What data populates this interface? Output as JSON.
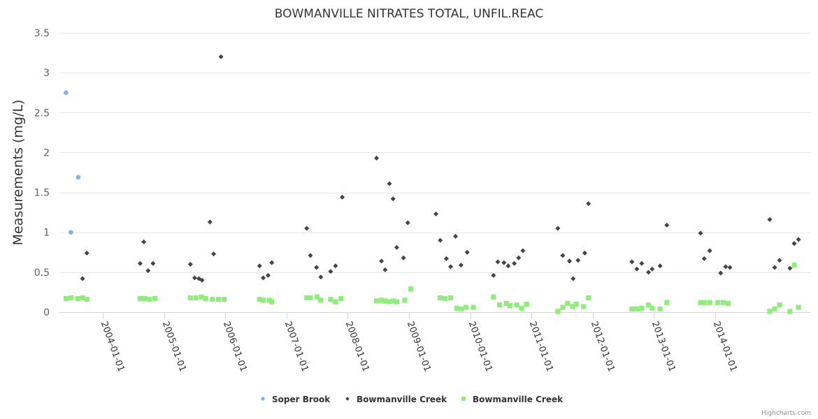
{
  "chart_data": {
    "type": "scatter",
    "title": "BOWMANVILLE NITRATES TOTAL, UNFIL.REAC",
    "xlabel": "",
    "ylabel": "Measurements (mg/L)",
    "ylim": [
      0,
      3.5
    ],
    "yticks": [
      "0",
      "0.5",
      "1",
      "1.5",
      "2",
      "2.5",
      "3",
      "3.5"
    ],
    "ytick_values": [
      0,
      0.5,
      1,
      1.5,
      2,
      2.5,
      3,
      3.5
    ],
    "xlim": [
      2003.33,
      2014.82
    ],
    "xticks": [
      "2004-01-01",
      "2005-01-01",
      "2006-01-01",
      "2007-01-01",
      "2008-01-01",
      "2009-01-01",
      "2010-01-01",
      "2011-01-01",
      "2012-01-01",
      "2013-01-01",
      "2014-01-01"
    ],
    "xtick_values": [
      2004,
      2005,
      2006,
      2007,
      2008,
      2009,
      2010,
      2011,
      2012,
      2013,
      2014
    ],
    "grid": true,
    "legend_position": "bottom-center",
    "credits": "Highcharts.com",
    "series": [
      {
        "name": "Soper Brook",
        "marker": "circle",
        "color": "#7cb5ec",
        "points": [
          [
            2003.4,
            2.75
          ],
          [
            2003.48,
            1.0
          ],
          [
            2003.6,
            1.69
          ]
        ]
      },
      {
        "name": "Bowmanville Creek",
        "marker": "diamond",
        "color": "#434348",
        "points": [
          [
            2003.67,
            0.42
          ],
          [
            2003.74,
            0.74
          ],
          [
            2004.61,
            0.61
          ],
          [
            2004.67,
            0.88
          ],
          [
            2004.74,
            0.52
          ],
          [
            2004.82,
            0.61
          ],
          [
            2005.43,
            0.6
          ],
          [
            2005.5,
            0.43
          ],
          [
            2005.57,
            0.42
          ],
          [
            2005.62,
            0.4
          ],
          [
            2005.75,
            1.13
          ],
          [
            2005.81,
            0.73
          ],
          [
            2005.93,
            3.2
          ],
          [
            2006.56,
            0.58
          ],
          [
            2006.62,
            0.43
          ],
          [
            2006.7,
            0.46
          ],
          [
            2006.76,
            0.62
          ],
          [
            2007.33,
            1.05
          ],
          [
            2007.39,
            0.71
          ],
          [
            2007.49,
            0.56
          ],
          [
            2007.56,
            0.44
          ],
          [
            2007.72,
            0.51
          ],
          [
            2007.8,
            0.58
          ],
          [
            2007.91,
            1.44
          ],
          [
            2008.47,
            1.93
          ],
          [
            2008.55,
            0.64
          ],
          [
            2008.61,
            0.53
          ],
          [
            2008.68,
            1.61
          ],
          [
            2008.74,
            1.42
          ],
          [
            2008.8,
            0.81
          ],
          [
            2008.91,
            0.68
          ],
          [
            2008.98,
            1.12
          ],
          [
            2009.44,
            1.23
          ],
          [
            2009.51,
            0.9
          ],
          [
            2009.61,
            0.67
          ],
          [
            2009.68,
            0.57
          ],
          [
            2009.76,
            0.95
          ],
          [
            2009.85,
            0.59
          ],
          [
            2009.95,
            0.75
          ],
          [
            2010.38,
            0.46
          ],
          [
            2010.45,
            0.63
          ],
          [
            2010.55,
            0.62
          ],
          [
            2010.62,
            0.58
          ],
          [
            2010.72,
            0.61
          ],
          [
            2010.79,
            0.68
          ],
          [
            2010.86,
            0.77
          ],
          [
            2011.43,
            1.05
          ],
          [
            2011.51,
            0.71
          ],
          [
            2011.62,
            0.64
          ],
          [
            2011.68,
            0.42
          ],
          [
            2011.76,
            0.65
          ],
          [
            2011.87,
            0.74
          ],
          [
            2011.93,
            1.36
          ],
          [
            2012.64,
            0.63
          ],
          [
            2012.72,
            0.54
          ],
          [
            2012.8,
            0.61
          ],
          [
            2012.91,
            0.5
          ],
          [
            2012.97,
            0.54
          ],
          [
            2013.1,
            0.58
          ],
          [
            2013.21,
            1.09
          ],
          [
            2013.76,
            0.99
          ],
          [
            2013.82,
            0.67
          ],
          [
            2013.91,
            0.77
          ],
          [
            2014.09,
            0.49
          ],
          [
            2014.17,
            0.57
          ],
          [
            2014.24,
            0.56
          ],
          [
            2014.89,
            1.16
          ],
          [
            2014.97,
            0.56
          ],
          [
            2015.05,
            0.65
          ],
          [
            2015.22,
            0.55
          ],
          [
            2015.29,
            0.86
          ],
          [
            2015.36,
            0.91
          ]
        ]
      },
      {
        "name": "Bowmanville Creek",
        "marker": "square",
        "color": "#90ed7d",
        "points": [
          [
            2003.4,
            0.17
          ],
          [
            2003.48,
            0.18
          ],
          [
            2003.59,
            0.17
          ],
          [
            2003.67,
            0.18
          ],
          [
            2003.74,
            0.16
          ],
          [
            2004.61,
            0.17
          ],
          [
            2004.69,
            0.17
          ],
          [
            2004.76,
            0.16
          ],
          [
            2004.85,
            0.17
          ],
          [
            2005.43,
            0.18
          ],
          [
            2005.52,
            0.18
          ],
          [
            2005.61,
            0.19
          ],
          [
            2005.68,
            0.17
          ],
          [
            2005.79,
            0.16
          ],
          [
            2005.89,
            0.16
          ],
          [
            2005.98,
            0.16
          ],
          [
            2006.56,
            0.16
          ],
          [
            2006.62,
            0.15
          ],
          [
            2006.72,
            0.15
          ],
          [
            2006.76,
            0.13
          ],
          [
            2007.33,
            0.18
          ],
          [
            2007.39,
            0.18
          ],
          [
            2007.5,
            0.19
          ],
          [
            2007.56,
            0.15
          ],
          [
            2007.72,
            0.16
          ],
          [
            2007.8,
            0.13
          ],
          [
            2007.89,
            0.17
          ],
          [
            2008.47,
            0.14
          ],
          [
            2008.55,
            0.15
          ],
          [
            2008.61,
            0.14
          ],
          [
            2008.68,
            0.13
          ],
          [
            2008.74,
            0.14
          ],
          [
            2008.8,
            0.13
          ],
          [
            2008.93,
            0.15
          ],
          [
            2009.03,
            0.29
          ],
          [
            2009.51,
            0.18
          ],
          [
            2009.59,
            0.17
          ],
          [
            2009.68,
            0.18
          ],
          [
            2009.78,
            0.05
          ],
          [
            2009.85,
            0.04
          ],
          [
            2009.93,
            0.06
          ],
          [
            2010.05,
            0.06
          ],
          [
            2010.38,
            0.19
          ],
          [
            2010.48,
            0.09
          ],
          [
            2010.59,
            0.11
          ],
          [
            2010.65,
            0.08
          ],
          [
            2010.76,
            0.09
          ],
          [
            2010.84,
            0.05
          ],
          [
            2010.92,
            0.1
          ],
          [
            2011.43,
            0.01
          ],
          [
            2011.51,
            0.06
          ],
          [
            2011.59,
            0.11
          ],
          [
            2011.67,
            0.07
          ],
          [
            2011.73,
            0.1
          ],
          [
            2011.85,
            0.07
          ],
          [
            2011.93,
            0.18
          ],
          [
            2012.64,
            0.04
          ],
          [
            2012.72,
            0.04
          ],
          [
            2012.8,
            0.05
          ],
          [
            2012.91,
            0.09
          ],
          [
            2012.97,
            0.05
          ],
          [
            2013.1,
            0.04
          ],
          [
            2013.21,
            0.12
          ],
          [
            2013.76,
            0.12
          ],
          [
            2013.82,
            0.12
          ],
          [
            2013.91,
            0.12
          ],
          [
            2014.04,
            0.12
          ],
          [
            2014.13,
            0.12
          ],
          [
            2014.21,
            0.11
          ],
          [
            2014.89,
            0.01
          ],
          [
            2014.97,
            0.04
          ],
          [
            2015.05,
            0.09
          ],
          [
            2015.22,
            0.01
          ],
          [
            2015.29,
            0.59
          ],
          [
            2015.36,
            0.06
          ]
        ]
      }
    ]
  }
}
